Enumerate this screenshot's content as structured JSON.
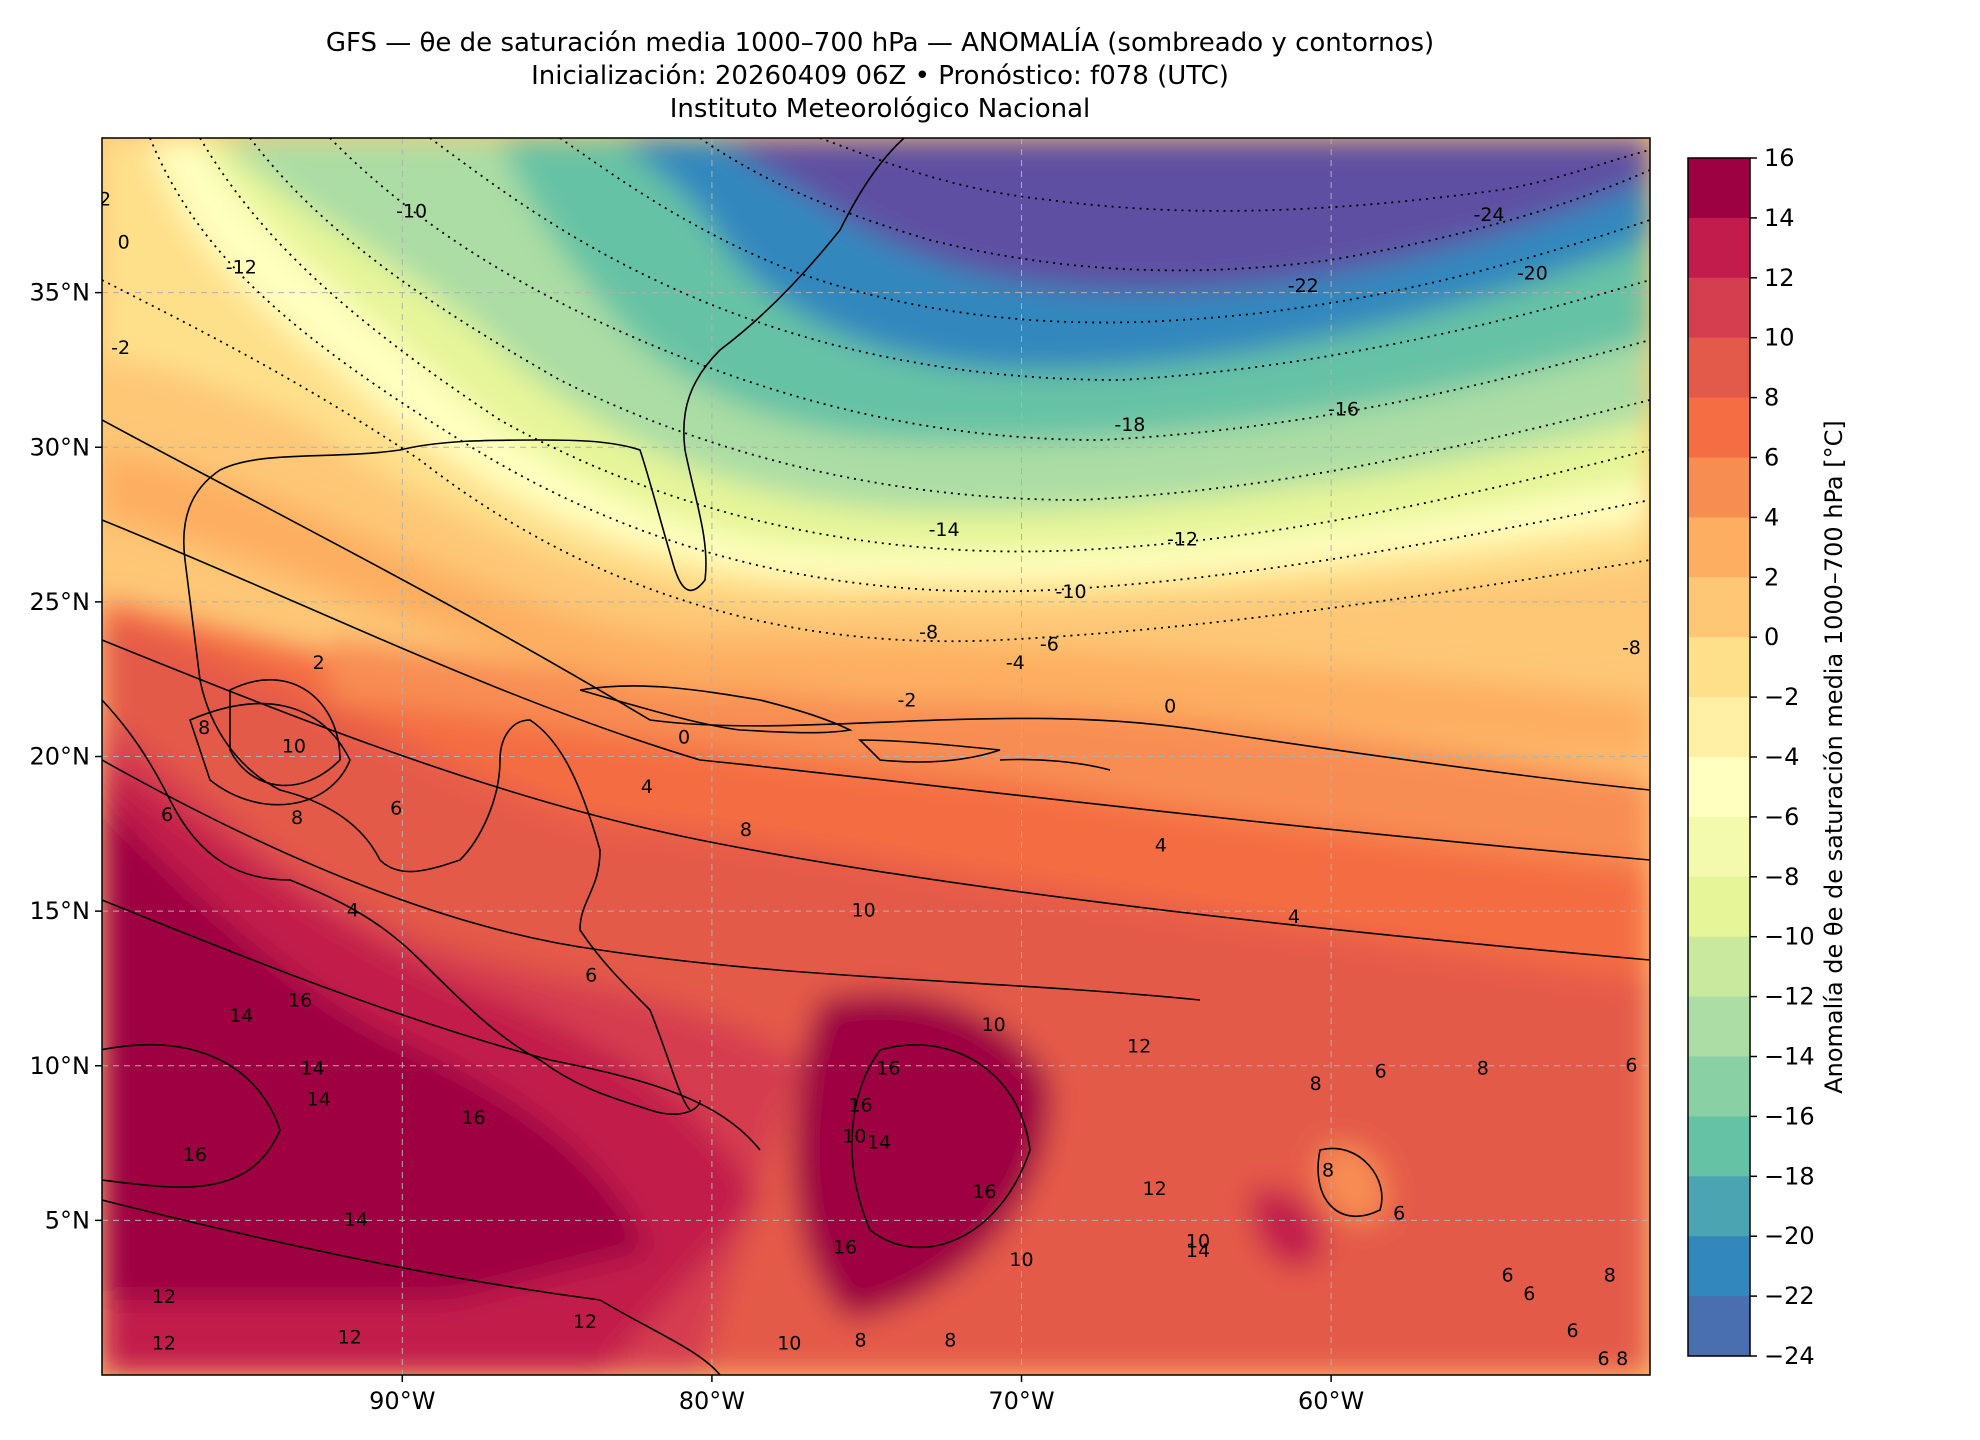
{
  "title": {
    "line1": "GFS — θe de saturación media 1000–700 hPa — ANOMALÍA (sombreado y contornos)",
    "line2": "Inicialización: 20260409 06Z   •   Pronóstico: f078 (UTC)",
    "line3": "Instituto Meteorológico Nacional"
  },
  "map": {
    "lat_ticks": [
      {
        "lat": 35,
        "label": "35°N"
      },
      {
        "lat": 30,
        "label": "30°N"
      },
      {
        "lat": 25,
        "label": "25°N"
      },
      {
        "lat": 20,
        "label": "20°N"
      },
      {
        "lat": 15,
        "label": "15°N"
      },
      {
        "lat": 10,
        "label": "10°N"
      },
      {
        "lat": 5,
        "label": "5°N"
      }
    ],
    "lon_ticks": [
      {
        "lon": -90,
        "label": "90°W"
      },
      {
        "lon": -80,
        "label": "80°W"
      },
      {
        "lon": -70,
        "label": "70°W"
      },
      {
        "lon": -60,
        "label": "60°W"
      }
    ],
    "extent": {
      "lon_min": -99.7,
      "lon_max": -49.7,
      "lat_min": 0.0,
      "lat_max": 40.0
    },
    "contour_labels": [
      {
        "text": "-24",
        "lon": -54.9,
        "lat": 37.5
      },
      {
        "text": "-22",
        "lon": -60.9,
        "lat": 35.2
      },
      {
        "text": "-20",
        "lon": -53.5,
        "lat": 35.6
      },
      {
        "text": "-18",
        "lon": -66.5,
        "lat": 30.7
      },
      {
        "text": "-16",
        "lon": -59.6,
        "lat": 31.2
      },
      {
        "text": "-14",
        "lon": -72.5,
        "lat": 27.3
      },
      {
        "text": "-12",
        "lon": -64.8,
        "lat": 27.0
      },
      {
        "text": "-10",
        "lon": -68.4,
        "lat": 25.3
      },
      {
        "text": "-8",
        "lon": -73.0,
        "lat": 24.0
      },
      {
        "text": "-6",
        "lon": -69.1,
        "lat": 23.6
      },
      {
        "text": "-4",
        "lon": -70.2,
        "lat": 23.0
      },
      {
        "text": "-2",
        "lon": -73.7,
        "lat": 21.8
      },
      {
        "text": "0",
        "lon": -80.9,
        "lat": 20.6
      },
      {
        "text": "0",
        "lon": -65.2,
        "lat": 21.6
      },
      {
        "text": "2",
        "lon": -92.7,
        "lat": 23.0
      },
      {
        "text": "4",
        "lon": -82.1,
        "lat": 19.0
      },
      {
        "text": "-8",
        "lon": -50.3,
        "lat": 23.5
      },
      {
        "text": "-10",
        "lon": -89.7,
        "lat": 37.6
      },
      {
        "text": "-12",
        "lon": -95.2,
        "lat": 35.8
      },
      {
        "text": "8",
        "lon": -96.4,
        "lat": 20.9
      },
      {
        "text": "10",
        "lon": -93.5,
        "lat": 20.3
      },
      {
        "text": "6",
        "lon": -90.2,
        "lat": 18.3
      },
      {
        "text": "8",
        "lon": -93.4,
        "lat": 18.0
      },
      {
        "text": "6",
        "lon": -97.6,
        "lat": 18.1
      },
      {
        "text": "8",
        "lon": -78.9,
        "lat": 17.6
      },
      {
        "text": "4",
        "lon": -91.6,
        "lat": 15.0
      },
      {
        "text": "4",
        "lon": -65.5,
        "lat": 17.1
      },
      {
        "text": "4",
        "lon": -61.2,
        "lat": 14.8
      },
      {
        "text": "10",
        "lon": -75.1,
        "lat": 15.0
      },
      {
        "text": "6",
        "lon": -83.9,
        "lat": 12.9
      },
      {
        "text": "16",
        "lon": -93.3,
        "lat": 12.1
      },
      {
        "text": "14",
        "lon": -95.2,
        "lat": 11.6
      },
      {
        "text": "14",
        "lon": -92.9,
        "lat": 9.9
      },
      {
        "text": "14",
        "lon": -92.7,
        "lat": 8.9
      },
      {
        "text": "16",
        "lon": -87.7,
        "lat": 8.3
      },
      {
        "text": "16",
        "lon": -96.7,
        "lat": 7.1
      },
      {
        "text": "16",
        "lon": -74.3,
        "lat": 9.9
      },
      {
        "text": "16",
        "lon": -75.2,
        "lat": 8.7
      },
      {
        "text": "10",
        "lon": -70.9,
        "lat": 11.3
      },
      {
        "text": "10",
        "lon": -75.4,
        "lat": 7.7
      },
      {
        "text": "14",
        "lon": -74.6,
        "lat": 7.5
      },
      {
        "text": "16",
        "lon": -71.2,
        "lat": 5.9
      },
      {
        "text": "16",
        "lon": -75.7,
        "lat": 4.1
      },
      {
        "text": "8",
        "lon": -55.1,
        "lat": 9.9
      },
      {
        "text": "8",
        "lon": -60.5,
        "lat": 9.4
      },
      {
        "text": "6",
        "lon": -58.4,
        "lat": 9.8
      },
      {
        "text": "8",
        "lon": -60.1,
        "lat": 6.6
      },
      {
        "text": "6",
        "lon": -57.8,
        "lat": 5.2
      },
      {
        "text": "12",
        "lon": -66.2,
        "lat": 10.6
      },
      {
        "text": "10",
        "lon": -64.3,
        "lat": 4.3
      },
      {
        "text": "14",
        "lon": -64.3,
        "lat": 4.0
      },
      {
        "text": "12",
        "lon": -65.7,
        "lat": 6.0
      },
      {
        "text": "14",
        "lon": -91.5,
        "lat": 5.0
      },
      {
        "text": "10",
        "lon": -70.0,
        "lat": 3.7
      },
      {
        "text": "8",
        "lon": -75.2,
        "lat": 1.1
      },
      {
        "text": "8",
        "lon": -72.3,
        "lat": 1.1
      },
      {
        "text": "10",
        "lon": -77.5,
        "lat": 1.0
      },
      {
        "text": "12",
        "lon": -97.7,
        "lat": 2.5
      },
      {
        "text": "12",
        "lon": -97.7,
        "lat": 1.0
      },
      {
        "text": "12",
        "lon": -91.7,
        "lat": 1.2
      },
      {
        "text": "12",
        "lon": -84.1,
        "lat": 1.7
      },
      {
        "text": "6",
        "lon": -54.3,
        "lat": 3.2
      },
      {
        "text": "6",
        "lon": -53.6,
        "lat": 2.6
      },
      {
        "text": "6",
        "lon": -52.2,
        "lat": 1.4
      },
      {
        "text": "6",
        "lon": -51.2,
        "lat": 0.5
      },
      {
        "text": "8",
        "lon": -50.6,
        "lat": 0.5
      },
      {
        "text": "8",
        "lon": -51.0,
        "lat": 3.2
      },
      {
        "text": "6",
        "lon": -50.3,
        "lat": 10.0
      },
      {
        "text": "-2",
        "lon": -99.1,
        "lat": 33.2
      },
      {
        "text": "0",
        "lon": -99.0,
        "lat": 36.6
      },
      {
        "text": "2",
        "lon": -99.6,
        "lat": 38.0
      }
    ]
  },
  "colorbar": {
    "label": "Anomalía de θe de saturación media 1000–700 hPa [°C]",
    "ticks": [
      "16",
      "14",
      "12",
      "10",
      "8",
      "6",
      "4",
      "2",
      "0",
      "−2",
      "−4",
      "−6",
      "−8",
      "−10",
      "−12",
      "−14",
      "−16",
      "−18",
      "−20",
      "−22",
      "−24"
    ],
    "colors": [
      "#9e0142",
      "#c21c4c",
      "#d53e4f",
      "#e45a4a",
      "#f46d43",
      "#f88d52",
      "#fdae61",
      "#fdc776",
      "#fee08b",
      "#fff0a6",
      "#ffffbf",
      "#f3faad",
      "#e6f598",
      "#c9e99e",
      "#abdda4",
      "#89d0a4",
      "#66c2a5",
      "#4ba4b1",
      "#3288bd",
      "#4a6fb0",
      "#5e4fa2"
    ]
  }
}
